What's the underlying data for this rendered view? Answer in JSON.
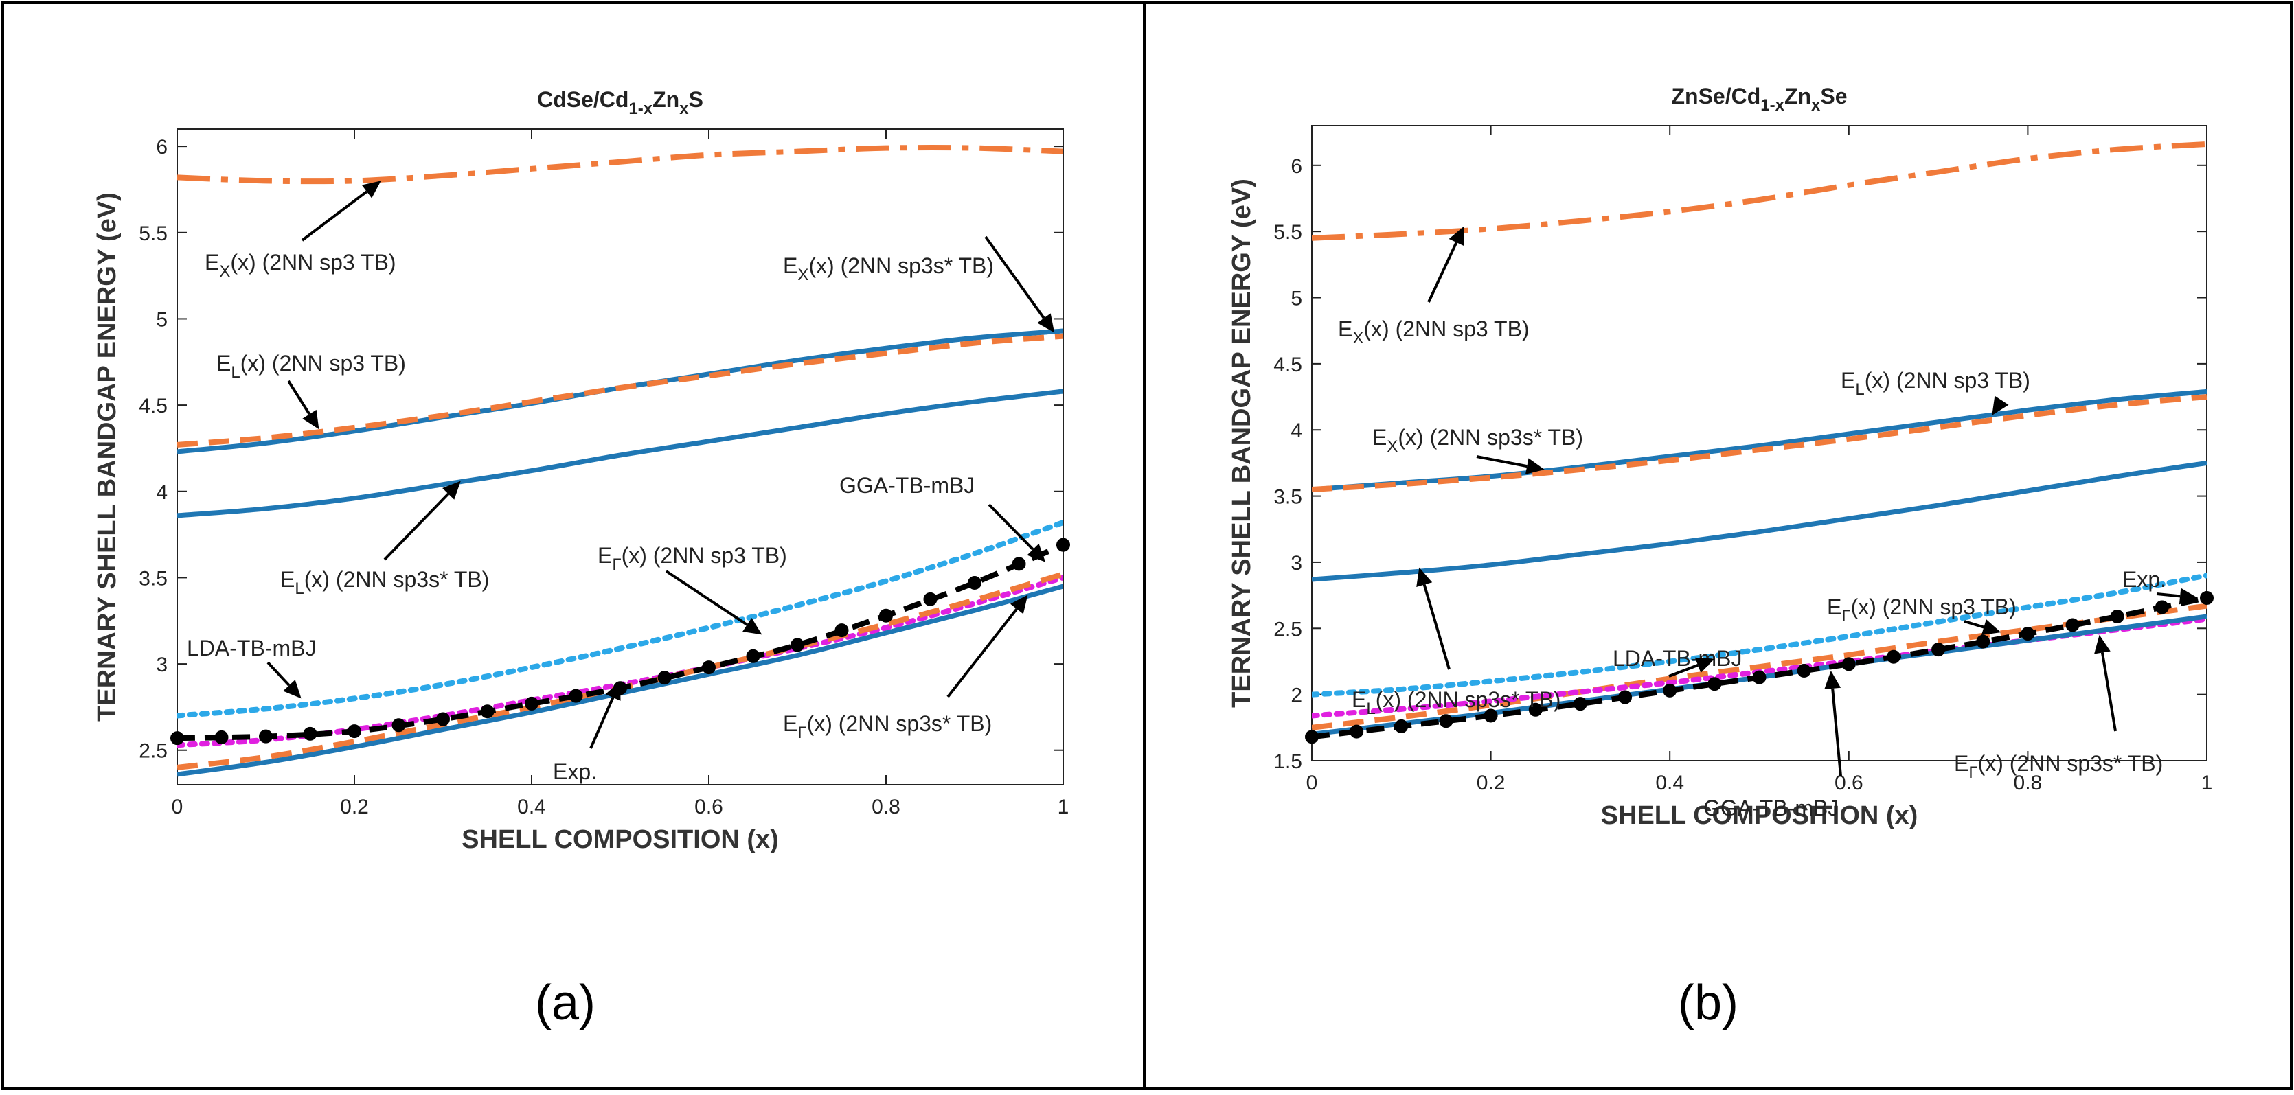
{
  "colors": {
    "blue": "#1f77b4",
    "orange": "#f07a3a",
    "light_blue": "#2ca8e8",
    "magenta": "#e020e0",
    "black": "#000000",
    "frame": "#000000"
  },
  "panel_labels": [
    "(a)",
    "(b)"
  ],
  "chart_data": [
    {
      "type": "line",
      "title": "CdSe/Cd1-xZnxS",
      "title_parts": [
        "CdSe/Cd",
        "1-x",
        "Zn",
        "x",
        "S"
      ],
      "xlabel": "SHELL COMPOSITION (x)",
      "ylabel": "TERNARY SHELL BANDGAP ENERGY (eV)",
      "xlim": [
        0,
        1
      ],
      "ylim": [
        2.3,
        6.1
      ],
      "xticks": [
        0,
        0.2,
        0.4,
        0.6,
        0.8,
        1
      ],
      "xtick_labels": [
        "0",
        "0.2",
        "0.4",
        "0.6",
        "0.8",
        "1"
      ],
      "yticks": [
        2.5,
        3,
        3.5,
        4,
        4.5,
        5,
        5.5,
        6
      ],
      "ytick_labels": [
        "2.5",
        "3",
        "3.5",
        "4",
        "4.5",
        "5",
        "5.5",
        "6"
      ],
      "x": [
        0,
        0.1,
        0.2,
        0.3,
        0.4,
        0.5,
        0.6,
        0.7,
        0.8,
        0.9,
        1.0
      ],
      "series": [
        {
          "name": "EX(x) (2NN sp3 TB)",
          "style": "dashdot",
          "color": "orange",
          "values": [
            5.82,
            5.8,
            5.8,
            5.83,
            5.87,
            5.91,
            5.95,
            5.97,
            5.99,
            5.99,
            5.97
          ]
        },
        {
          "name": "EX(x) (2NN sp3s* TB)",
          "style": "solid",
          "color": "blue",
          "values": [
            4.23,
            4.28,
            4.35,
            4.43,
            4.51,
            4.6,
            4.68,
            4.76,
            4.83,
            4.89,
            4.93
          ]
        },
        {
          "name": "EL(x) (2NN sp3 TB)",
          "style": "dashed",
          "color": "orange",
          "values": [
            4.27,
            4.31,
            4.37,
            4.44,
            4.52,
            4.6,
            4.67,
            4.74,
            4.8,
            4.86,
            4.9
          ]
        },
        {
          "name": "EL(x) (2NN sp3s* TB)",
          "style": "solid",
          "color": "blue",
          "values": [
            3.86,
            3.9,
            3.96,
            4.04,
            4.12,
            4.21,
            4.29,
            4.37,
            4.45,
            4.52,
            4.58
          ]
        },
        {
          "name": "LDA-TB-mBJ",
          "style": "dotted",
          "color": "light_blue",
          "values": [
            2.7,
            2.74,
            2.8,
            2.88,
            2.98,
            3.09,
            3.21,
            3.34,
            3.48,
            3.64,
            3.82
          ]
        },
        {
          "name": "GGA-TB-mBJ",
          "style": "dotted",
          "color": "magenta",
          "values": [
            2.53,
            2.56,
            2.62,
            2.7,
            2.79,
            2.88,
            2.98,
            3.09,
            3.21,
            3.35,
            3.5
          ]
        },
        {
          "name": "EΓ(x) (2NN sp3 TB)",
          "style": "dashed",
          "color": "orange",
          "values": [
            2.4,
            2.46,
            2.55,
            2.65,
            2.75,
            2.86,
            2.98,
            3.1,
            3.23,
            3.37,
            3.52
          ]
        },
        {
          "name": "EΓ(x) (2NN sp3s* TB)",
          "style": "solid",
          "color": "blue",
          "values": [
            2.36,
            2.43,
            2.52,
            2.62,
            2.72,
            2.83,
            2.94,
            3.05,
            3.18,
            3.31,
            3.45
          ]
        },
        {
          "name": "Exp.",
          "style": "dashed-markers",
          "color": "black",
          "values": [
            2.57,
            2.58,
            2.61,
            2.68,
            2.77,
            2.86,
            2.98,
            3.11,
            3.28,
            3.47,
            3.69
          ]
        }
      ],
      "annotations": [
        {
          "sub_main": "E",
          "sub": "X",
          "text": "(x) (2NN sp3 TB)"
        },
        {
          "sub_main": "E",
          "sub": "X",
          "text": "(x) (2NN sp3s* TB)"
        },
        {
          "sub_main": "E",
          "sub": "L",
          "text": "(x) (2NN sp3 TB)"
        },
        {
          "sub_main": "E",
          "sub": "L",
          "text": "(x) (2NN sp3s* TB)"
        },
        {
          "sub_main": "",
          "sub": "",
          "text": "GGA-TB-mBJ"
        },
        {
          "sub_main": "E",
          "sub": "Γ",
          "text": "(x) (2NN sp3 TB)"
        },
        {
          "sub_main": "",
          "sub": "",
          "text": "LDA-TB-mBJ"
        },
        {
          "sub_main": "E",
          "sub": "Γ",
          "text": "(x) (2NN sp3s* TB)"
        },
        {
          "sub_main": "",
          "sub": "",
          "text": "Exp."
        }
      ]
    },
    {
      "type": "line",
      "title": "ZnSe/Cd1-xZnxSe",
      "title_parts": [
        "ZnSe/Cd",
        "1-x",
        "Zn",
        "x",
        "Se"
      ],
      "xlabel": "SHELL COMPOSITION (x)",
      "ylabel": "TERNARY SHELL BANDGAP ENERGY (eV)",
      "xlim": [
        0,
        1
      ],
      "ylim": [
        1.5,
        6.3
      ],
      "xticks": [
        0,
        0.2,
        0.4,
        0.6,
        0.8,
        1
      ],
      "xtick_labels": [
        "0",
        "0.2",
        "0.4",
        "0.6",
        "0.8",
        "1"
      ],
      "yticks": [
        1.5,
        2,
        2.5,
        3,
        3.5,
        4,
        4.5,
        5,
        5.5,
        6
      ],
      "ytick_labels": [
        "1.5",
        "2",
        "2.5",
        "3",
        "3.5",
        "4",
        "4.5",
        "5",
        "5.5",
        "6"
      ],
      "x": [
        0,
        0.1,
        0.2,
        0.3,
        0.4,
        0.5,
        0.6,
        0.7,
        0.8,
        0.9,
        1.0
      ],
      "series": [
        {
          "name": "EX(x) (2NN sp3 TB)",
          "style": "dashdot",
          "color": "orange",
          "values": [
            5.45,
            5.48,
            5.52,
            5.58,
            5.65,
            5.74,
            5.85,
            5.95,
            6.05,
            6.12,
            6.16
          ]
        },
        {
          "name": "EL(x) (2NN sp3 TB)",
          "style": "solid",
          "color": "blue",
          "values": [
            3.55,
            3.6,
            3.65,
            3.72,
            3.8,
            3.88,
            3.97,
            4.06,
            4.15,
            4.23,
            4.29
          ]
        },
        {
          "name": "EX(x) (2NN sp3s* TB)",
          "style": "dashed",
          "color": "orange",
          "values": [
            3.55,
            3.59,
            3.64,
            3.7,
            3.77,
            3.85,
            3.93,
            4.02,
            4.11,
            4.19,
            4.25
          ]
        },
        {
          "name": "EL(x) (2NN sp3s* TB)",
          "style": "solid",
          "color": "blue",
          "values": [
            2.87,
            2.92,
            2.98,
            3.06,
            3.14,
            3.23,
            3.33,
            3.43,
            3.54,
            3.65,
            3.75
          ]
        },
        {
          "name": "LDA-TB-mBJ",
          "style": "dotted",
          "color": "light_blue",
          "values": [
            2.0,
            2.04,
            2.1,
            2.17,
            2.25,
            2.34,
            2.44,
            2.55,
            2.66,
            2.77,
            2.9
          ]
        },
        {
          "name": "EΓ(x) (2NN sp3 TB)",
          "style": "dashed",
          "color": "orange",
          "values": [
            1.75,
            1.83,
            1.92,
            2.02,
            2.12,
            2.21,
            2.3,
            2.4,
            2.49,
            2.58,
            2.67
          ]
        },
        {
          "name": "GGA-TB-mBJ",
          "style": "dotted",
          "color": "magenta",
          "values": [
            1.84,
            1.89,
            1.95,
            2.02,
            2.09,
            2.17,
            2.25,
            2.33,
            2.41,
            2.49,
            2.57
          ]
        },
        {
          "name": "EΓ(x) (2NN sp3s* TB)",
          "style": "solid",
          "color": "blue",
          "values": [
            1.7,
            1.78,
            1.86,
            1.95,
            2.04,
            2.13,
            2.23,
            2.32,
            2.41,
            2.5,
            2.59
          ]
        },
        {
          "name": "Exp.",
          "style": "dashed-markers",
          "color": "black",
          "values": [
            1.68,
            1.76,
            1.84,
            1.93,
            2.03,
            2.13,
            2.23,
            2.34,
            2.46,
            2.59,
            2.73
          ]
        }
      ],
      "annotations": [
        {
          "sub_main": "E",
          "sub": "X",
          "text": "(x) (2NN sp3 TB)"
        },
        {
          "sub_main": "E",
          "sub": "L",
          "text": "(x) (2NN sp3 TB)"
        },
        {
          "sub_main": "E",
          "sub": "X",
          "text": "(x) (2NN sp3s* TB)"
        },
        {
          "sub_main": "E",
          "sub": "Γ",
          "text": "(x) (2NN sp3 TB)"
        },
        {
          "sub_main": "",
          "sub": "",
          "text": "Exp."
        },
        {
          "sub_main": "",
          "sub": "",
          "text": "LDA-TB-mBJ"
        },
        {
          "sub_main": "E",
          "sub": "L",
          "text": "(x) (2NN sp3s* TB)"
        },
        {
          "sub_main": "E",
          "sub": "Γ",
          "text": "(x) (2NN sp3s* TB)"
        },
        {
          "sub_main": "",
          "sub": "",
          "text": "GGA-TB-mBJ"
        }
      ]
    }
  ]
}
